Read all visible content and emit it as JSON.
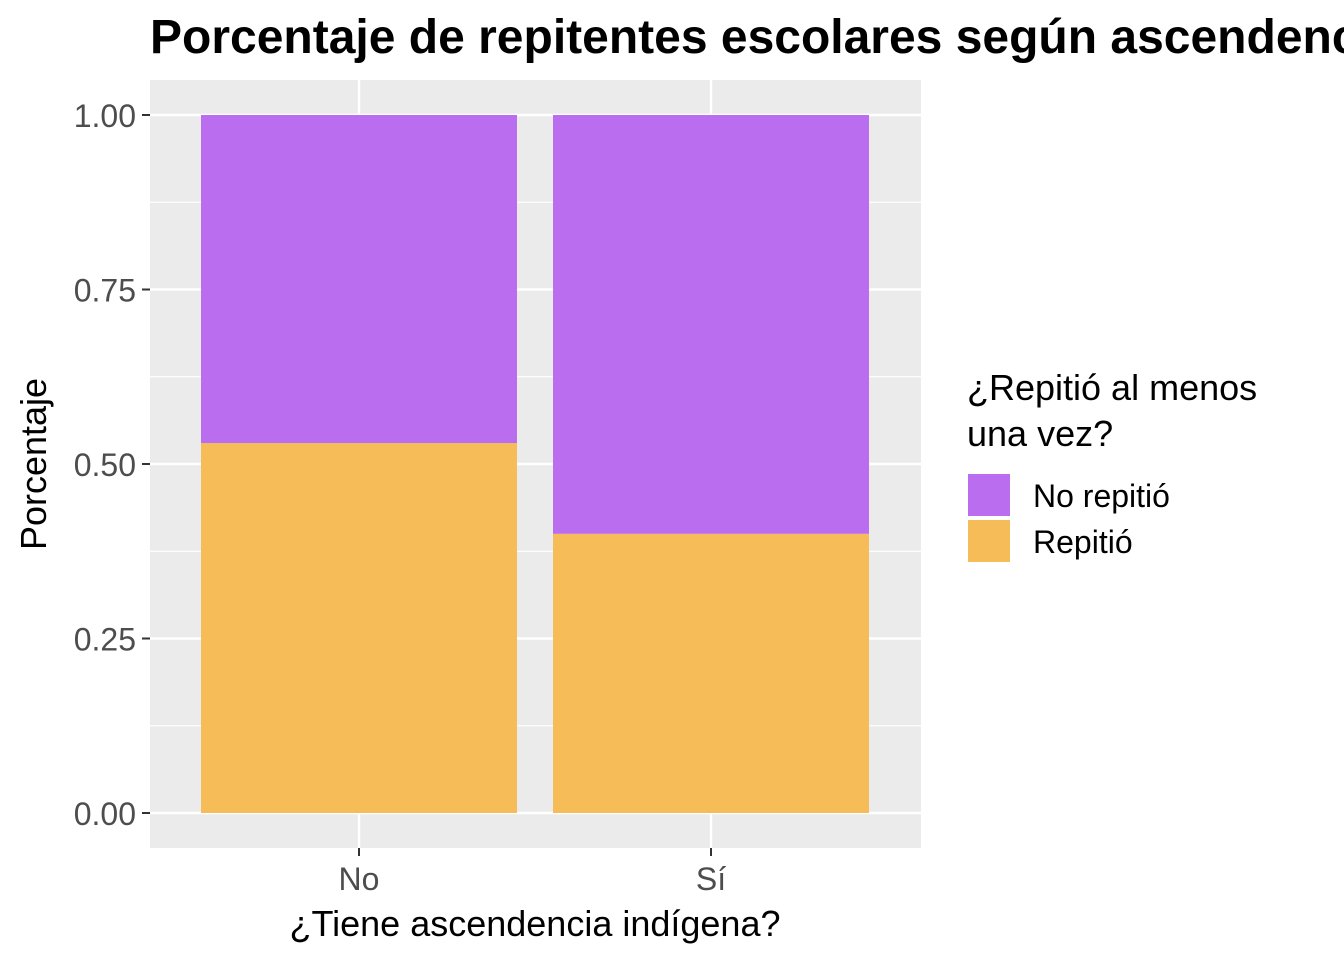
{
  "chart_data": {
    "type": "bar",
    "stacked": true,
    "title": "Porcentaje de repitentes escolares según ascendencia indígena",
    "xlabel": "¿Tiene ascendencia indígena?",
    "ylabel": "Porcentaje",
    "ylim": [
      0,
      1.05
    ],
    "y_ticks": [
      0,
      0.25,
      0.5,
      0.75,
      1
    ],
    "y_tick_labels": [
      "0.00",
      "0.25",
      "0.50",
      "0.75",
      "1.00"
    ],
    "grid": true,
    "categories": [
      "No",
      "Sí"
    ],
    "series": [
      {
        "name": "Repitió",
        "color": "#F5BC57",
        "values": [
          0.53,
          0.4
        ]
      },
      {
        "name": "No repitió",
        "color": "#BA6DEE",
        "values": [
          0.47,
          0.6
        ]
      }
    ],
    "legend": {
      "title_lines": [
        "¿Repitió al menos",
        "una vez?"
      ],
      "placement": "right",
      "items": [
        {
          "label": "No repitió",
          "color": "#BA6DEE"
        },
        {
          "label": "Repitió",
          "color": "#F5BC57"
        }
      ]
    },
    "panel_background": "#EBEBEB",
    "grid_color": "#FFFFFF"
  }
}
